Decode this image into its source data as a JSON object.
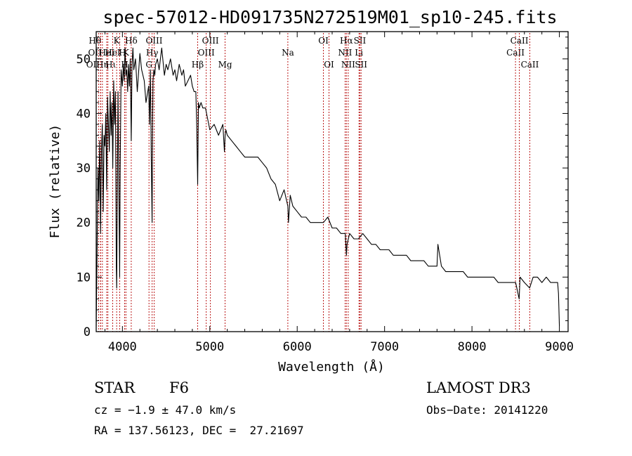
{
  "chart_data": {
    "type": "line",
    "title": "spec-57012-HD091735N272519M01_sp10-245.fits",
    "xlabel": "Wavelength (Å)",
    "ylabel": "Flux (relative)",
    "xlim": [
      3700,
      9100
    ],
    "ylim": [
      0,
      55
    ],
    "xticks": [
      4000,
      5000,
      6000,
      7000,
      8000,
      9000
    ],
    "yticks": [
      0,
      10,
      20,
      30,
      40,
      50
    ],
    "series": [
      {
        "name": "flux",
        "x": [
          3700,
          3710,
          3720,
          3730,
          3740,
          3750,
          3760,
          3770,
          3780,
          3790,
          3800,
          3810,
          3820,
          3830,
          3840,
          3850,
          3860,
          3870,
          3880,
          3890,
          3900,
          3910,
          3920,
          3930,
          3935,
          3940,
          3950,
          3960,
          3968,
          3975,
          3985,
          4000,
          4010,
          4020,
          4030,
          4040,
          4050,
          4060,
          4070,
          4080,
          4090,
          4101,
          4110,
          4120,
          4130,
          4150,
          4170,
          4200,
          4220,
          4250,
          4270,
          4290,
          4300,
          4310,
          4320,
          4330,
          4340,
          4345,
          4350,
          4360,
          4370,
          4380,
          4400,
          4420,
          4450,
          4480,
          4500,
          4520,
          4550,
          4580,
          4600,
          4620,
          4650,
          4680,
          4700,
          4720,
          4750,
          4780,
          4800,
          4820,
          4840,
          4850,
          4861,
          4870,
          4880,
          4900,
          4920,
          4950,
          5000,
          5050,
          5100,
          5150,
          5167,
          5175,
          5183,
          5200,
          5250,
          5300,
          5350,
          5400,
          5450,
          5500,
          5550,
          5600,
          5650,
          5700,
          5750,
          5800,
          5850,
          5893,
          5900,
          5920,
          5950,
          6000,
          6050,
          6100,
          6150,
          6200,
          6250,
          6300,
          6350,
          6400,
          6450,
          6500,
          6550,
          6563,
          6570,
          6600,
          6650,
          6700,
          6750,
          6800,
          6850,
          6900,
          6950,
          7000,
          7050,
          7100,
          7150,
          7200,
          7250,
          7300,
          7350,
          7400,
          7450,
          7500,
          7550,
          7600,
          7610,
          7650,
          7700,
          7750,
          7800,
          7850,
          7900,
          7950,
          8000,
          8050,
          8100,
          8150,
          8200,
          8250,
          8300,
          8350,
          8400,
          8450,
          8460,
          8500,
          8540,
          8550,
          8600,
          8660,
          8700,
          8750,
          8800,
          8850,
          8900,
          8950,
          8980,
          8990,
          9000
        ],
        "y": [
          1,
          14,
          30,
          24,
          35,
          18,
          33,
          38,
          22,
          36,
          34,
          40,
          26,
          43,
          38,
          33,
          44,
          36,
          42,
          30,
          46,
          38,
          44,
          12,
          8,
          22,
          44,
          25,
          10,
          30,
          48,
          45,
          49,
          46,
          52,
          47,
          48,
          44,
          49,
          45,
          50,
          35,
          49,
          52,
          48,
          50,
          44,
          51,
          48,
          46,
          42,
          44,
          45,
          38,
          48,
          32,
          20,
          38,
          46,
          48,
          47,
          49,
          50,
          48,
          52,
          47,
          49,
          48,
          50,
          47,
          48,
          46,
          49,
          47,
          48,
          45,
          46,
          47,
          45,
          44,
          44,
          38,
          27,
          42,
          41,
          42,
          41,
          41,
          37,
          38,
          36,
          38,
          33,
          36,
          37,
          36,
          35,
          34,
          33,
          32,
          32,
          32,
          32,
          31,
          30,
          28,
          27,
          24,
          26,
          23,
          20,
          25,
          23,
          22,
          21,
          21,
          20,
          20,
          20,
          20,
          21,
          19,
          19,
          18,
          18,
          14,
          16,
          18,
          17,
          17,
          18,
          17,
          16,
          16,
          15,
          15,
          15,
          14,
          14,
          14,
          14,
          13,
          13,
          13,
          13,
          12,
          12,
          12,
          16,
          12,
          11,
          11,
          11,
          11,
          11,
          10,
          10,
          10,
          10,
          10,
          10,
          10,
          9,
          9,
          9,
          9,
          9,
          9,
          6,
          10,
          9,
          8,
          10,
          10,
          9,
          10,
          9,
          9,
          9,
          7,
          1
        ]
      }
    ],
    "line_markers": [
      {
        "w": 3750,
        "label": "Hθ",
        "row": 1,
        "dx": -8
      },
      {
        "w": 3771,
        "label": "Hη",
        "row": 3,
        "dx": 0
      },
      {
        "w": 3727,
        "label": "OII",
        "row": 3,
        "dx": -8
      },
      {
        "w": 3750,
        "label": "OII",
        "row": 2,
        "dx": -8
      },
      {
        "w": 3820,
        "label": "HeI",
        "row": 2,
        "dx": 0
      },
      {
        "w": 3834,
        "label": "Hι",
        "row": 3,
        "dx": 4
      },
      {
        "w": 3889,
        "label": "HeI",
        "row": 2,
        "dx": 0
      },
      {
        "w": 3934,
        "label": "K",
        "row": 1,
        "dx": 0
      },
      {
        "w": 3969,
        "label": "H",
        "row": 2,
        "dx": 4
      },
      {
        "w": 4026,
        "label": "H",
        "row": 3,
        "dx": 0
      },
      {
        "w": 4101,
        "label": "Hδ",
        "row": 1,
        "dx": 0
      },
      {
        "w": 4040,
        "label": "K",
        "row": 2,
        "dx": 0
      },
      {
        "w": 4304,
        "label": "G",
        "row": 3,
        "dx": 0
      },
      {
        "w": 4340,
        "label": "Hγ",
        "row": 2,
        "dx": 0
      },
      {
        "w": 4363,
        "label": "OIII",
        "row": 1,
        "dx": 0
      },
      {
        "w": 4861,
        "label": "Hβ",
        "row": 3,
        "dx": 0
      },
      {
        "w": 4959,
        "label": "OIII",
        "row": 2,
        "dx": 0
      },
      {
        "w": 5007,
        "label": "OIII",
        "row": 1,
        "dx": 0
      },
      {
        "w": 5175,
        "label": "Mg",
        "row": 3,
        "dx": 0
      },
      {
        "w": 5893,
        "label": "Na",
        "row": 2,
        "dx": 0
      },
      {
        "w": 6300,
        "label": "OI",
        "row": 1,
        "dx": 0
      },
      {
        "w": 6364,
        "label": "OI",
        "row": 3,
        "dx": 0
      },
      {
        "w": 6548,
        "label": "NII",
        "row": 2,
        "dx": 0
      },
      {
        "w": 6563,
        "label": "Hα",
        "row": 1,
        "dx": 0
      },
      {
        "w": 6584,
        "label": "NII",
        "row": 3,
        "dx": 0
      },
      {
        "w": 6707,
        "label": "Li",
        "row": 2,
        "dx": 0
      },
      {
        "w": 6717,
        "label": "SII",
        "row": 1,
        "dx": 0
      },
      {
        "w": 6731,
        "label": "SII",
        "row": 3,
        "dx": 0
      },
      {
        "w": 8498,
        "label": "CaII",
        "row": 2,
        "dx": 0
      },
      {
        "w": 8542,
        "label": "CaII",
        "row": 1,
        "dx": 0
      },
      {
        "w": 8662,
        "label": "CaII",
        "row": 3,
        "dx": 0
      }
    ]
  },
  "info": {
    "object_class": "STAR",
    "subclass": "F6",
    "survey": "LAMOST DR3",
    "cz_line": "cz = −1.9 ± 47.0 km/s",
    "obs_date": "Obs−Date: 20141220",
    "coords_line": "RA = 137.56123, DEC =  27.21697"
  },
  "colors": {
    "marker_line": "#b30000",
    "spectrum": "#000000"
  }
}
